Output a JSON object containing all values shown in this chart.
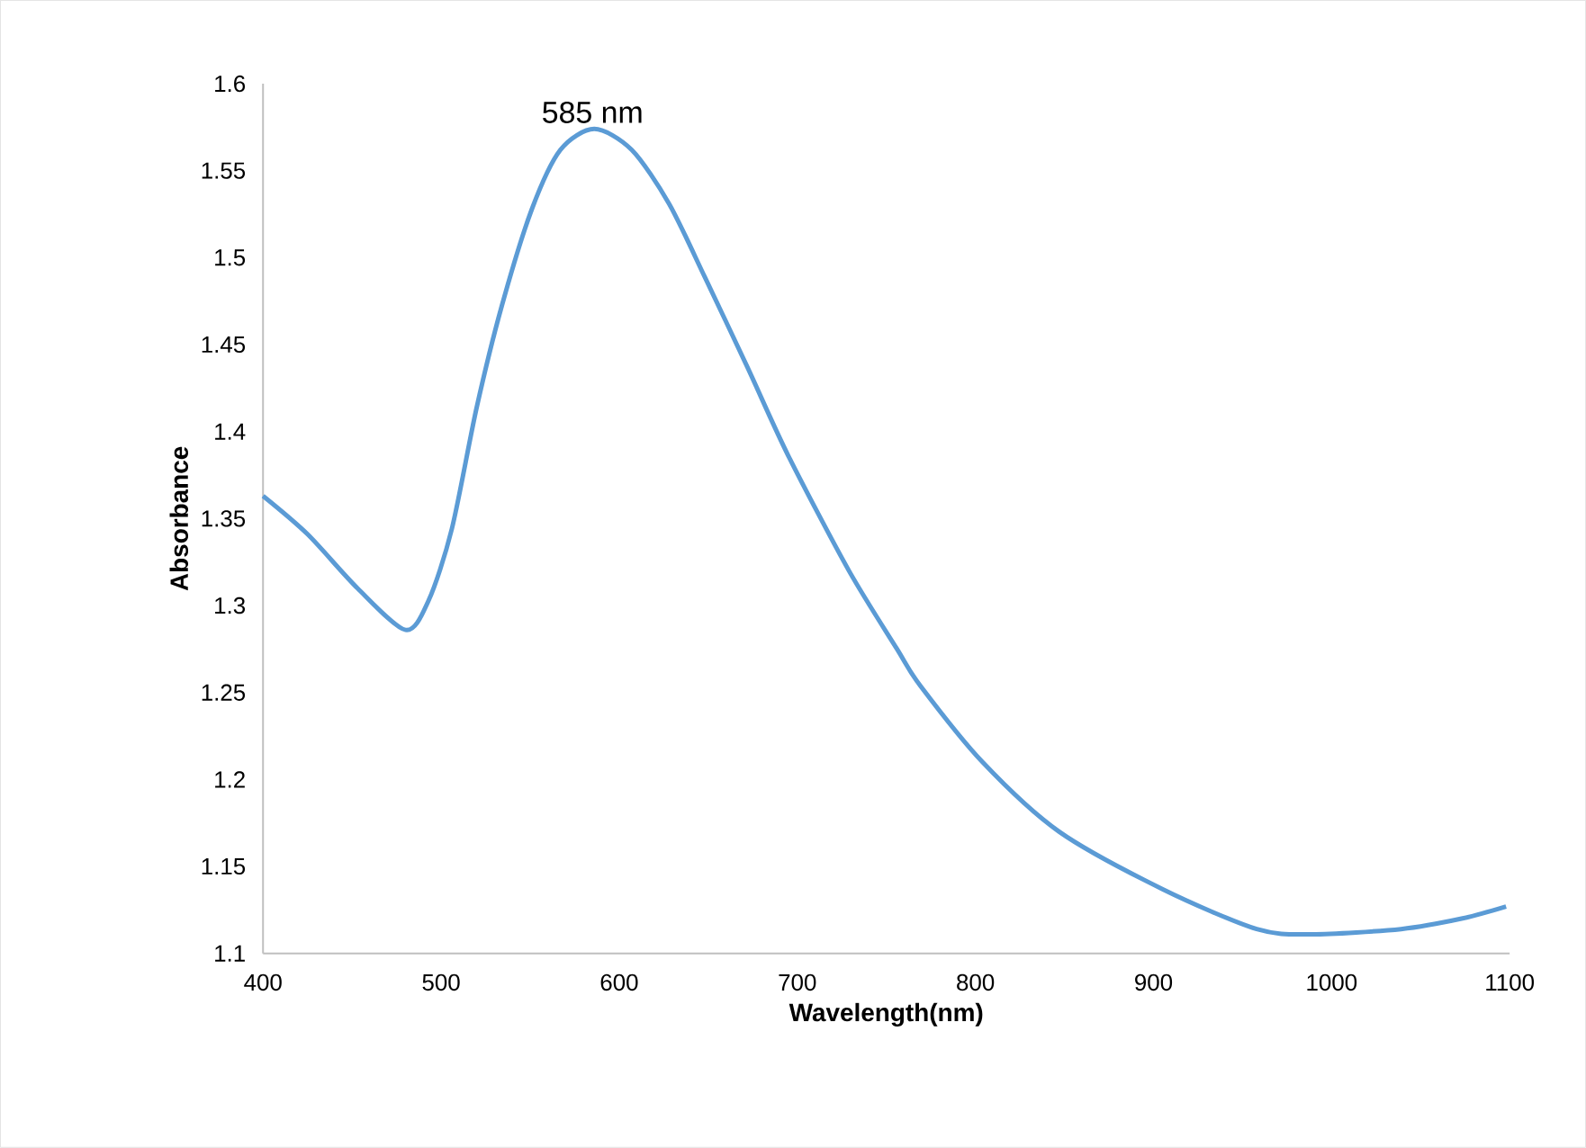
{
  "chart_data": {
    "type": "line",
    "xlabel": "Wavelength(nm)",
    "ylabel": "Absorbance",
    "x": [
      400,
      425,
      453,
      480,
      493,
      506,
      520,
      534,
      551,
      567,
      586,
      607,
      628,
      648,
      672,
      695,
      729,
      756,
      769,
      804,
      847,
      905,
      958,
      989,
      1039,
      1073,
      1098
    ],
    "series": [
      {
        "color": "#5b9bd5",
        "values": [
          1.363,
          1.341,
          1.31,
          1.286,
          1.303,
          1.344,
          1.414,
          1.472,
          1.528,
          1.562,
          1.574,
          1.562,
          1.531,
          1.489,
          1.437,
          1.386,
          1.32,
          1.275,
          1.254,
          1.21,
          1.17,
          1.137,
          1.114,
          1.111,
          1.114,
          1.12,
          1.127
        ]
      }
    ],
    "xlim": [
      400,
      1100
    ],
    "xticks": [
      400,
      500,
      600,
      700,
      800,
      900,
      1000,
      1100
    ],
    "ylim": [
      1.1,
      1.6
    ],
    "yticks": [
      1.1,
      1.15,
      1.2,
      1.25,
      1.3,
      1.35,
      1.4,
      1.45,
      1.5,
      1.55,
      1.6
    ],
    "annotations": [
      {
        "text": "585 nm",
        "x": 585,
        "y": 1.574
      }
    ],
    "grid": false,
    "legend": false,
    "marker": "none",
    "line_style": "solid"
  }
}
